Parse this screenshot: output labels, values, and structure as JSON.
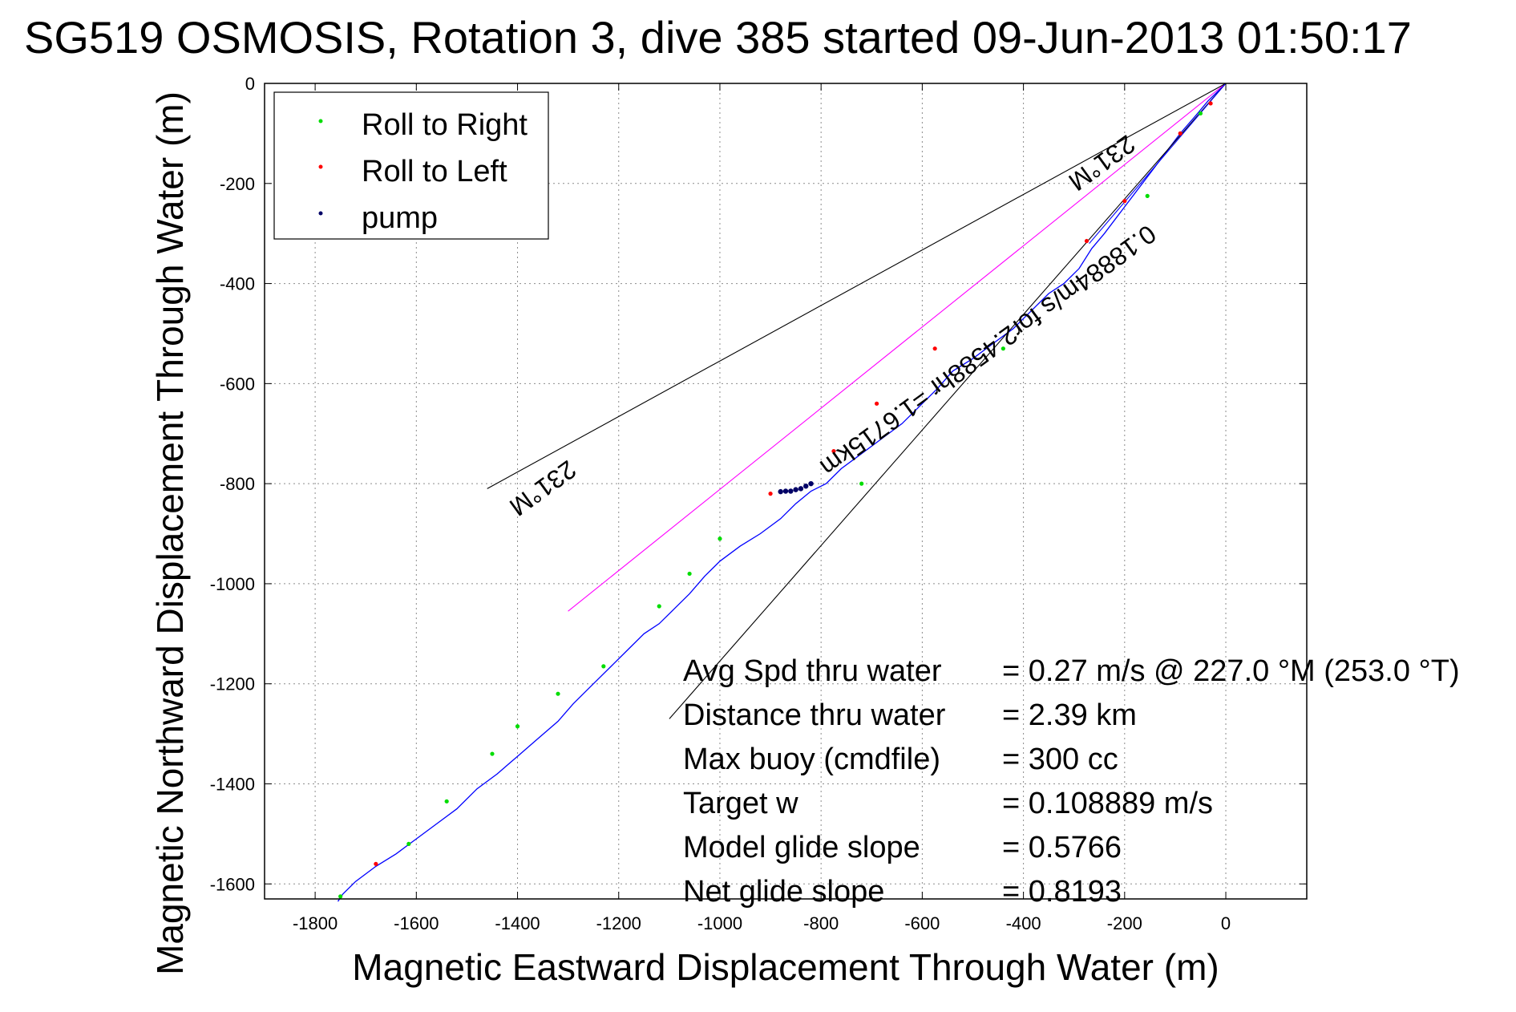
{
  "chart_data": {
    "type": "line",
    "title": "SG519 OSMOSIS, Rotation 3, dive 385 started 09-Jun-2013 01:50:17",
    "xlabel": "Magnetic Eastward Displacement Through Water (m)",
    "ylabel": "Magnetic Northward Displacement Through Water (m)",
    "xlim": [
      -1900,
      160
    ],
    "ylim": [
      -1630,
      0
    ],
    "xticks": [
      -1800,
      -1600,
      -1400,
      -1200,
      -1000,
      -800,
      -600,
      -400,
      -200,
      0
    ],
    "yticks": [
      0,
      -200,
      -400,
      -600,
      -800,
      -1000,
      -1200,
      -1400,
      -1600
    ],
    "grid": true,
    "legend": {
      "placement": "top-left",
      "entries": [
        {
          "label": "Roll to Right",
          "color": "#00dd00"
        },
        {
          "label": "Roll to Left",
          "color": "#ff0000"
        },
        {
          "label": "pump",
          "color": "#000066"
        }
      ]
    },
    "series": [
      {
        "name": "track",
        "kind": "line",
        "color": "#0000ff",
        "x": [
          0,
          -15,
          -35,
          -60,
          -90,
          -120,
          -150,
          -180,
          -210,
          -240,
          -265,
          -290,
          -320,
          -350,
          -380,
          -420,
          -460,
          -500,
          -540,
          -570,
          -600,
          -640,
          -680,
          -720,
          -760,
          -790,
          -820,
          -850,
          -880,
          -920,
          -960,
          -1000,
          -1030,
          -1060,
          -1090,
          -1120,
          -1150,
          -1180,
          -1210,
          -1250,
          -1290,
          -1320,
          -1360,
          -1400,
          -1440,
          -1480,
          -1520,
          -1560,
          -1600,
          -1640,
          -1680,
          -1720,
          -1745,
          -1755
        ],
        "y": [
          0,
          -15,
          -35,
          -65,
          -100,
          -140,
          -180,
          -220,
          -260,
          -300,
          -330,
          -370,
          -400,
          -420,
          -450,
          -490,
          -520,
          -550,
          -575,
          -610,
          -640,
          -680,
          -710,
          -740,
          -770,
          -800,
          -815,
          -840,
          -870,
          -900,
          -925,
          -955,
          -985,
          -1020,
          -1050,
          -1080,
          -1100,
          -1130,
          -1160,
          -1200,
          -1240,
          -1275,
          -1310,
          -1345,
          -1380,
          -1410,
          -1450,
          -1480,
          -1510,
          -1540,
          -1565,
          -1595,
          -1620,
          -1635
        ]
      },
      {
        "name": "heading-line",
        "kind": "reference",
        "color": "#ff00ff",
        "x": [
          0,
          -1300
        ],
        "y": [
          0,
          -1055
        ]
      },
      {
        "name": "upper-bound",
        "kind": "reference",
        "color": "#000000",
        "x": [
          0,
          -1460
        ],
        "y": [
          0,
          -810
        ]
      },
      {
        "name": "lower-bound",
        "kind": "reference",
        "color": "#000000",
        "x": [
          0,
          -1100
        ],
        "y": [
          0,
          -1270
        ]
      },
      {
        "name": "axis-link",
        "kind": "reference",
        "color": "#0000ff",
        "x": [
          0,
          -270
        ],
        "y": [
          0,
          -320
        ]
      }
    ],
    "markers": {
      "roll_right": {
        "color": "#00dd00",
        "x": [
          -50,
          -155,
          -440,
          -720,
          -1000,
          -1060,
          -1120,
          -1230,
          -1320,
          -1400,
          -1450,
          -1540,
          -1615,
          -1750
        ],
        "y": [
          -60,
          -225,
          -530,
          -800,
          -910,
          -980,
          -1045,
          -1165,
          -1220,
          -1285,
          -1340,
          -1435,
          -1520,
          -1625
        ]
      },
      "roll_left": {
        "color": "#ff0000",
        "x": [
          -30,
          -90,
          -200,
          -275,
          -575,
          -690,
          -775,
          -900,
          -1680
        ],
        "y": [
          -40,
          -100,
          -235,
          -315,
          -530,
          -640,
          -735,
          -820,
          -1560
        ]
      },
      "pump": {
        "color": "#000066",
        "x": [
          -820,
          -830,
          -840,
          -850,
          -860,
          -870,
          -880
        ],
        "y": [
          -800,
          -805,
          -810,
          -812,
          -815,
          -815,
          -816
        ]
      }
    },
    "annotations": [
      {
        "text": "231°M",
        "x": -1360,
        "y": -795,
        "rotation": 144
      },
      {
        "text": "231°M",
        "x": -255,
        "y": -145,
        "rotation": 144
      },
      {
        "text": "0.18884m/s for2.4588hr =1.6715km",
        "x": -480,
        "y": -520,
        "rotation": 144
      }
    ],
    "stats": [
      {
        "label": "Avg Spd thru water",
        "value": "=  0.27 m/s @ 227.0 °M (253.0 °T)"
      },
      {
        "label": "Distance thru water",
        "value": "=  2.39 km"
      },
      {
        "label": "Max buoy (cmdfile)",
        "value": "= 300 cc"
      },
      {
        "label": "Target w",
        "value": "= 0.108889 m/s"
      },
      {
        "label": "Model glide slope",
        "value": "= 0.5766"
      },
      {
        "label": "Net glide slope",
        "value": "= 0.8193"
      }
    ]
  }
}
